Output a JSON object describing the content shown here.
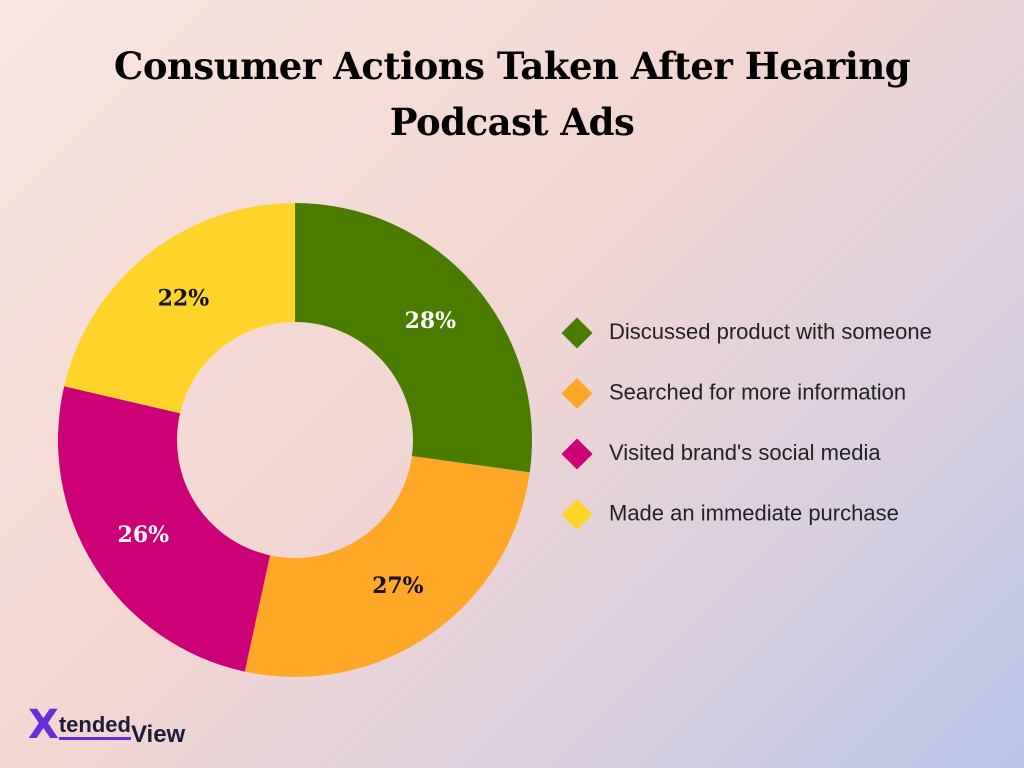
{
  "chart_data": {
    "type": "donut",
    "title": "Consumer Actions Taken After Hearing Podcast Ads",
    "categories": [
      "Discussed product with someone",
      "Searched for more information",
      "Visited brand's social media",
      "Made an immediate purchase"
    ],
    "values": [
      28,
      27,
      26,
      22
    ],
    "value_labels": [
      "28%",
      "27%",
      "26%",
      "22%"
    ],
    "colors": [
      "#4a7c00",
      "#ffa726",
      "#cc0077",
      "#ffd42a"
    ],
    "label_colors": [
      "#ffffff",
      "#111111",
      "#ffffff",
      "#111111"
    ],
    "legend": "right"
  },
  "brand": [
    "X",
    "tended",
    "View"
  ]
}
